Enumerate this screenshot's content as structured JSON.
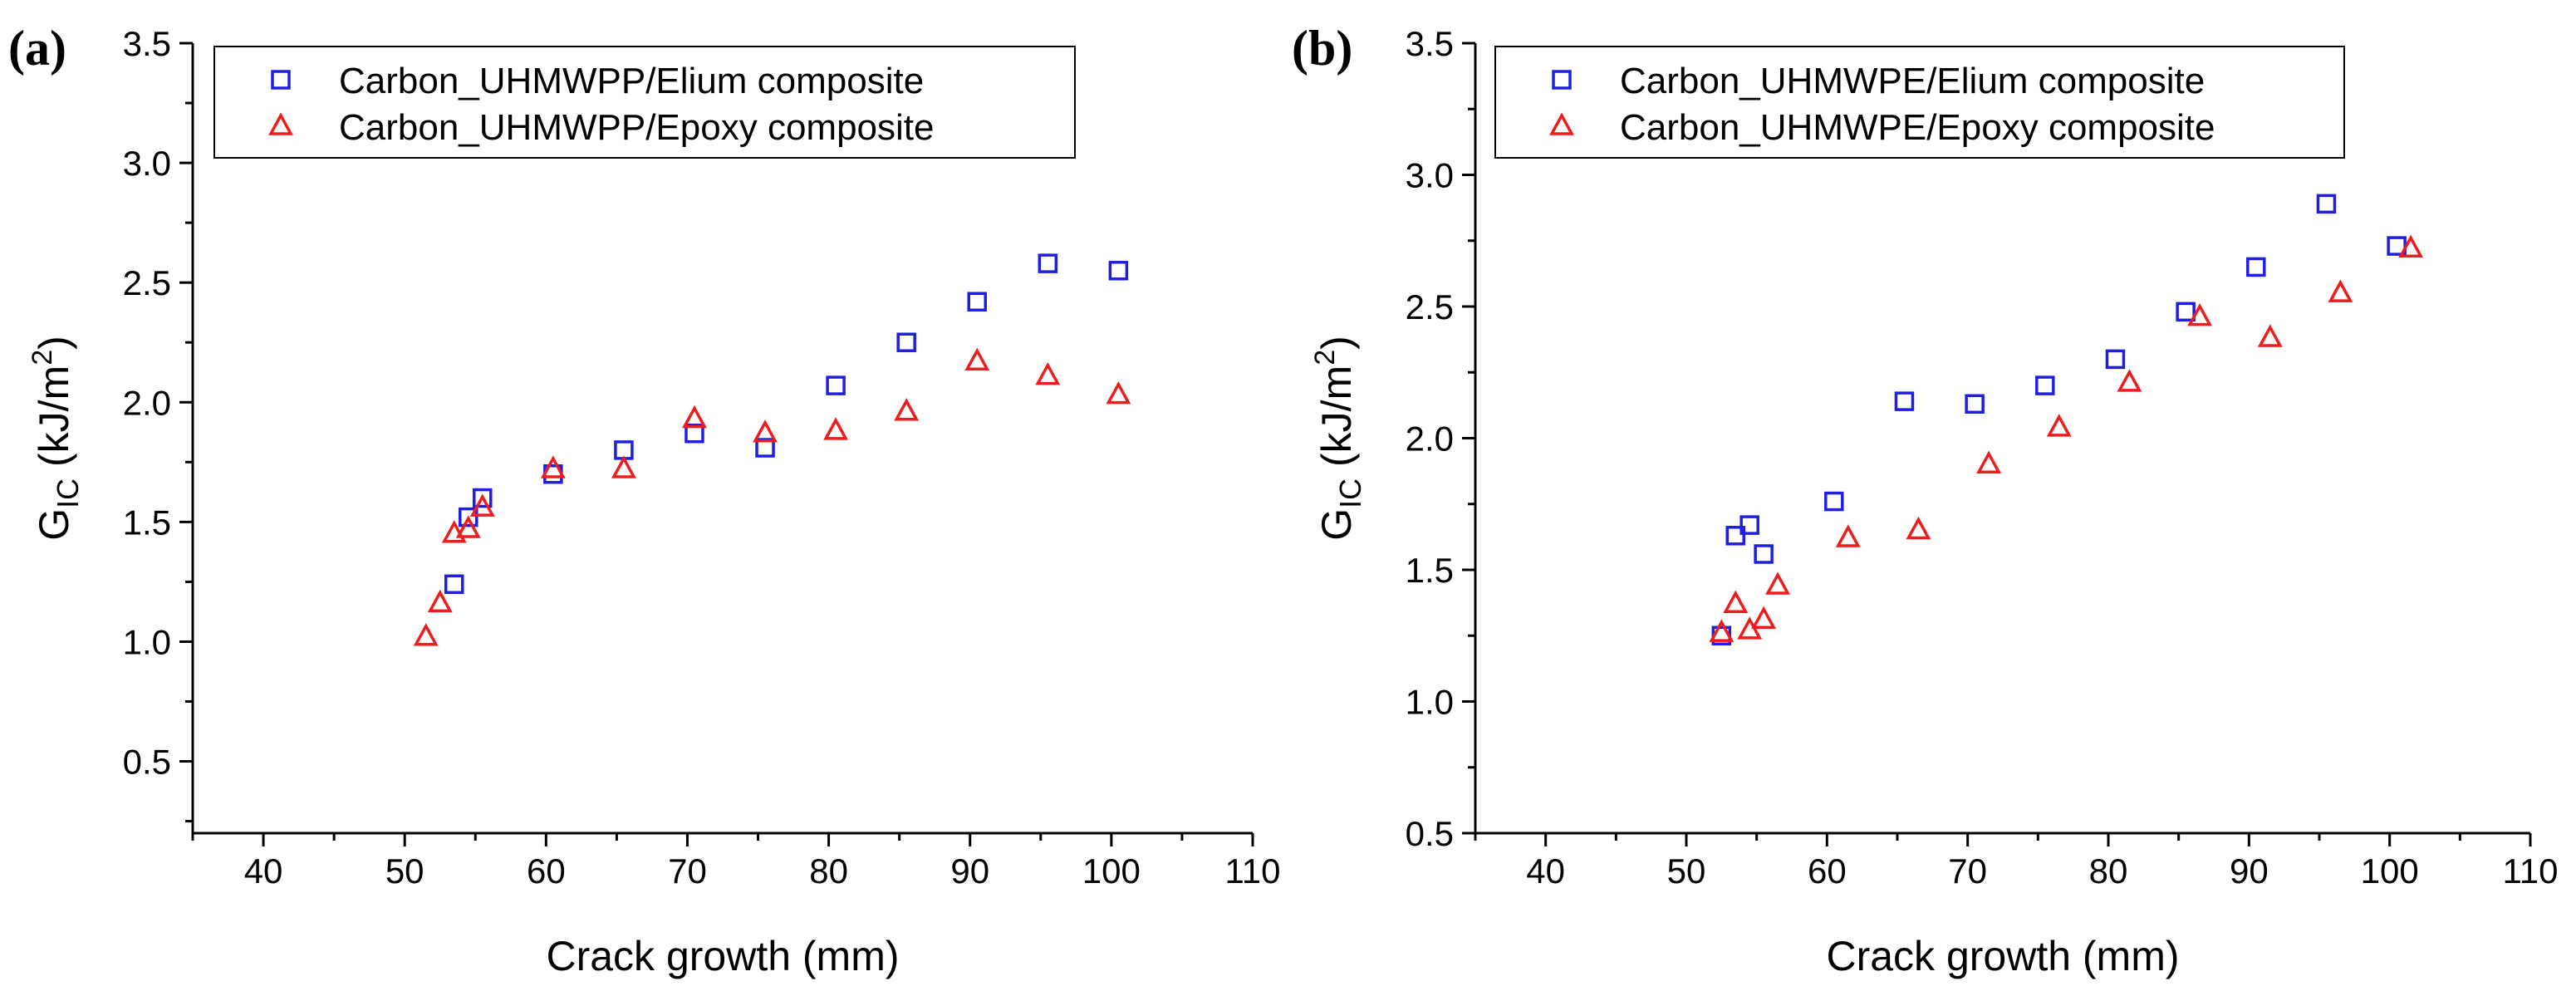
{
  "figure": {
    "panels": [
      {
        "label": "(a)"
      },
      {
        "label": "(b)"
      }
    ]
  },
  "chart_data": [
    {
      "type": "scatter",
      "panel_label": "(a)",
      "xlabel": "Crack growth (mm)",
      "ylabel": "G_IC (kJ/m^2)",
      "ylabel_parts": {
        "main": "G",
        "sub": "IC",
        "unit_open": " (kJ/m",
        "sup": "2",
        "unit_close": ")"
      },
      "xlim": [
        35,
        110
      ],
      "ylim": [
        0.2,
        3.5
      ],
      "x_ticks": [
        40,
        50,
        60,
        70,
        80,
        90,
        100,
        110
      ],
      "y_ticks": [
        0.5,
        1.0,
        1.5,
        2.0,
        2.5,
        3.0,
        3.5
      ],
      "x_tick_labels": [
        "40",
        "50",
        "60",
        "70",
        "80",
        "90",
        "100",
        "110"
      ],
      "y_tick_labels": [
        "0.5",
        "1.0",
        "1.5",
        "2.0",
        "2.5",
        "3.0",
        "3.5"
      ],
      "legend_position": "top-left",
      "series": [
        {
          "name": "Carbon_UHMWPP/Elium composite",
          "marker": "square",
          "color": "#1f1fdd",
          "x": [
            53.5,
            54.5,
            55.5,
            60.5,
            65.5,
            70.5,
            75.5,
            80.5,
            85.5,
            90.5,
            95.5,
            100.5
          ],
          "y": [
            1.24,
            1.52,
            1.6,
            1.7,
            1.8,
            1.87,
            1.81,
            2.07,
            2.25,
            2.42,
            2.58,
            2.55
          ]
        },
        {
          "name": "Carbon_UHMWPP/Epoxy composite",
          "marker": "triangle",
          "color": "#ee1c1c",
          "x": [
            51.5,
            52.5,
            53.5,
            54.5,
            55.5,
            60.5,
            65.5,
            70.5,
            75.5,
            80.5,
            85.5,
            90.5,
            95.5,
            100.5
          ],
          "y": [
            1.02,
            1.16,
            1.45,
            1.47,
            1.56,
            1.72,
            1.72,
            1.93,
            1.87,
            1.88,
            1.96,
            2.17,
            2.11,
            2.03
          ]
        }
      ]
    },
    {
      "type": "scatter",
      "panel_label": "(b)",
      "xlabel": "Crack growth (mm)",
      "ylabel": "G_IC (kJ/m^2)",
      "ylabel_parts": {
        "main": "G",
        "sub": "IC",
        "unit_open": " (kJ/m",
        "sup": "2",
        "unit_close": ")"
      },
      "xlim": [
        35,
        110
      ],
      "ylim": [
        0.5,
        3.5
      ],
      "x_ticks": [
        40,
        50,
        60,
        70,
        80,
        90,
        100,
        110
      ],
      "y_ticks": [
        0.5,
        1.0,
        1.5,
        2.0,
        2.5,
        3.0,
        3.5
      ],
      "x_tick_labels": [
        "40",
        "50",
        "60",
        "70",
        "80",
        "90",
        "100",
        "110"
      ],
      "y_tick_labels": [
        "0.5",
        "1.0",
        "1.5",
        "2.0",
        "2.5",
        "3.0",
        "3.5"
      ],
      "legend_position": "top-left",
      "series": [
        {
          "name": "Carbon_UHMWPE/Elium composite",
          "marker": "square",
          "color": "#1f1fdd",
          "x": [
            52.5,
            53.5,
            54.5,
            55.5,
            60.5,
            65.5,
            70.5,
            75.5,
            80.5,
            85.5,
            90.5,
            95.5,
            100.5
          ],
          "y": [
            1.25,
            1.63,
            1.67,
            1.56,
            1.76,
            2.14,
            2.13,
            2.2,
            2.3,
            2.48,
            2.65,
            2.89,
            2.73
          ]
        },
        {
          "name": "Carbon_UHMWPE/Epoxy composite",
          "marker": "triangle",
          "color": "#ee1c1c",
          "x": [
            52.5,
            53.5,
            54.5,
            55.5,
            56.5,
            61.5,
            66.5,
            71.5,
            76.5,
            81.5,
            86.5,
            91.5,
            96.5,
            101.5
          ],
          "y": [
            1.26,
            1.37,
            1.27,
            1.31,
            1.44,
            1.62,
            1.65,
            1.9,
            2.04,
            2.21,
            2.46,
            2.38,
            2.55,
            2.72
          ]
        }
      ]
    }
  ]
}
